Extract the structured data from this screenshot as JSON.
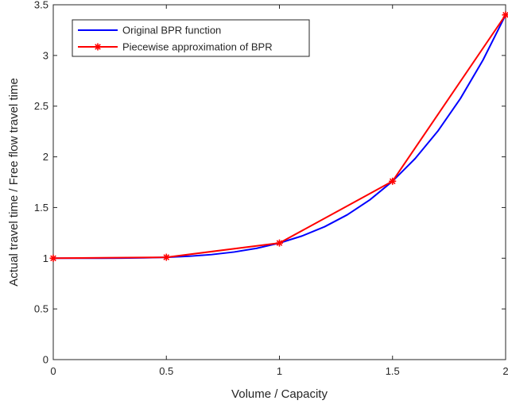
{
  "chart_data": {
    "type": "line",
    "xlabel": "Volume / Capacity",
    "ylabel": "Actual travel time / Free flow travel time",
    "xlim": [
      0,
      2
    ],
    "ylim": [
      0,
      3.5
    ],
    "xticks": [
      0,
      0.5,
      1,
      1.5,
      2
    ],
    "xtick_labels": [
      "0",
      "0.5",
      "1",
      "1.5",
      "2"
    ],
    "yticks": [
      0,
      0.5,
      1,
      1.5,
      2,
      2.5,
      3,
      3.5
    ],
    "ytick_labels": [
      "0",
      "0.5",
      "1",
      "1.5",
      "2",
      "2.5",
      "3",
      "3.5"
    ],
    "grid": false,
    "legend_position": "top-left",
    "series": [
      {
        "name": "Original BPR function",
        "color": "#0000ff",
        "marker": "none",
        "x": [
          0,
          0.1,
          0.2,
          0.3,
          0.4,
          0.5,
          0.6,
          0.7,
          0.8,
          0.9,
          1.0,
          1.1,
          1.2,
          1.3,
          1.4,
          1.5,
          1.6,
          1.7,
          1.8,
          1.9,
          2.0
        ],
        "y": [
          1.0,
          1.0,
          1.0002,
          1.0012,
          1.0038,
          1.0094,
          1.0194,
          1.036,
          1.0614,
          1.0984,
          1.15,
          1.2196,
          1.311,
          1.4284,
          1.5762,
          1.7594,
          1.983,
          2.2528,
          2.5746,
          2.9548,
          3.4
        ]
      },
      {
        "name": "Piecewise approximation of BPR",
        "color": "#ff0000",
        "marker": "asterisk",
        "x": [
          0,
          0.5,
          1,
          1.5,
          2
        ],
        "y": [
          1.0,
          1.0094,
          1.15,
          1.7594,
          3.4
        ]
      }
    ]
  }
}
